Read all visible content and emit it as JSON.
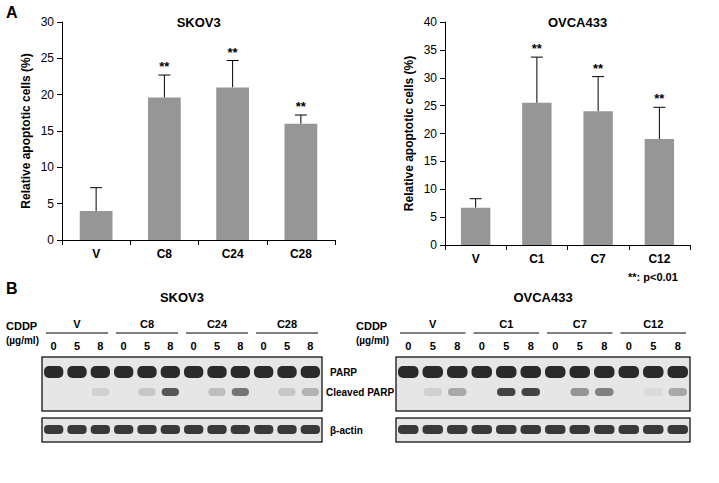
{
  "chart_data": [
    {
      "type": "bar",
      "title": "SKOV3",
      "y_label": "Relative apoptotic cells (%)",
      "categories": [
        "V",
        "C8",
        "C24",
        "C28"
      ],
      "values": [
        4,
        19.6,
        21,
        16
      ],
      "errors": [
        3.2,
        3.1,
        3.7,
        1.2
      ],
      "significance": [
        null,
        "**",
        "**",
        "**"
      ],
      "color": "#969696",
      "grid": false,
      "ylim": [
        0,
        30
      ],
      "yticks": [
        0,
        5,
        10,
        15,
        20,
        25,
        30
      ]
    },
    {
      "type": "bar",
      "title": "OVCA433",
      "y_label": "Relative apoptotic cells (%)",
      "categories": [
        "V",
        "C1",
        "C7",
        "C12"
      ],
      "values": [
        6.7,
        25.5,
        24,
        19
      ],
      "errors": [
        1.6,
        8.2,
        6.2,
        5.7
      ],
      "significance": [
        null,
        "**",
        "**",
        "**"
      ],
      "note": "**: p<0.01",
      "color": "#969696",
      "grid": false,
      "ylim": [
        0,
        40
      ],
      "yticks": [
        0,
        5,
        10,
        15,
        20,
        25,
        30,
        35,
        40
      ]
    }
  ],
  "panel_labels": [
    "A",
    "B"
  ],
  "blot_labels": {
    "bands": [
      "PARP",
      "Cleaved PARP"
    ],
    "loading": "β-actin"
  },
  "blots": [
    {
      "title": "SKOV3",
      "dose_label": "CDDP",
      "dose_unit": "(µg/ml)",
      "groups": [
        "V",
        "C8",
        "C24",
        "C28"
      ],
      "doses": [
        0,
        5,
        8
      ],
      "cleaved_parp": [
        0,
        0,
        0.1,
        0,
        0.15,
        0.7,
        0,
        0.2,
        0.55,
        0,
        0.15,
        0.25
      ]
    },
    {
      "title": "OVCA433",
      "dose_label": "CDDP",
      "dose_unit": "(µg/ml)",
      "groups": [
        "V",
        "C1",
        "C7",
        "C12"
      ],
      "doses": [
        0,
        5,
        8
      ],
      "cleaved_parp": [
        0,
        0.1,
        0.3,
        0,
        0.8,
        0.8,
        0,
        0.4,
        0.5,
        0,
        0.05,
        0.3
      ]
    }
  ]
}
